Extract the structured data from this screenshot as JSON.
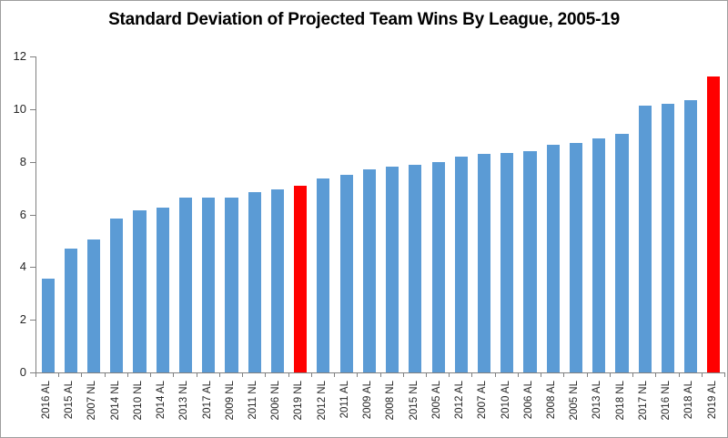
{
  "window": {
    "background": "#ffffff",
    "border_color": "#9e9e9e"
  },
  "chart_data": {
    "type": "bar",
    "title": "Standard Deviation of Projected Team Wins By League, 2005-19",
    "xlabel": "",
    "ylabel": "",
    "categories": [
      "2016 AL",
      "2015 AL",
      "2007 NL",
      "2014 NL",
      "2010 NL",
      "2014 AL",
      "2013 NL",
      "2017 AL",
      "2009 NL",
      "2011 NL",
      "2006 NL",
      "2019 NL",
      "2012 NL",
      "2011 AL",
      "2009 AL",
      "2008 NL",
      "2015 NL",
      "2005 AL",
      "2012 AL",
      "2007 AL",
      "2010 AL",
      "2006 AL",
      "2008 AL",
      "2005 NL",
      "2013 AL",
      "2018 NL",
      "2017 NL",
      "2016 NL",
      "2018 AL",
      "2019 AL"
    ],
    "values": [
      3.55,
      4.7,
      5.05,
      5.85,
      6.15,
      6.25,
      6.65,
      6.65,
      6.65,
      6.85,
      6.95,
      7.1,
      7.35,
      7.5,
      7.7,
      7.8,
      7.9,
      8.0,
      8.2,
      8.3,
      8.35,
      8.4,
      8.65,
      8.7,
      8.9,
      9.05,
      10.15,
      10.2,
      10.35,
      11.25
    ],
    "highlight_indices": [
      11,
      29
    ],
    "highlight_color": "#ff0000",
    "bar_color": "#5b9bd5",
    "axis_color": "#808080",
    "text_color": "#262626",
    "title_color": "#000000",
    "ylim": [
      0,
      12
    ],
    "yticks": [
      0,
      2,
      4,
      6,
      8,
      10,
      12
    ],
    "grid": false,
    "legend": null
  }
}
